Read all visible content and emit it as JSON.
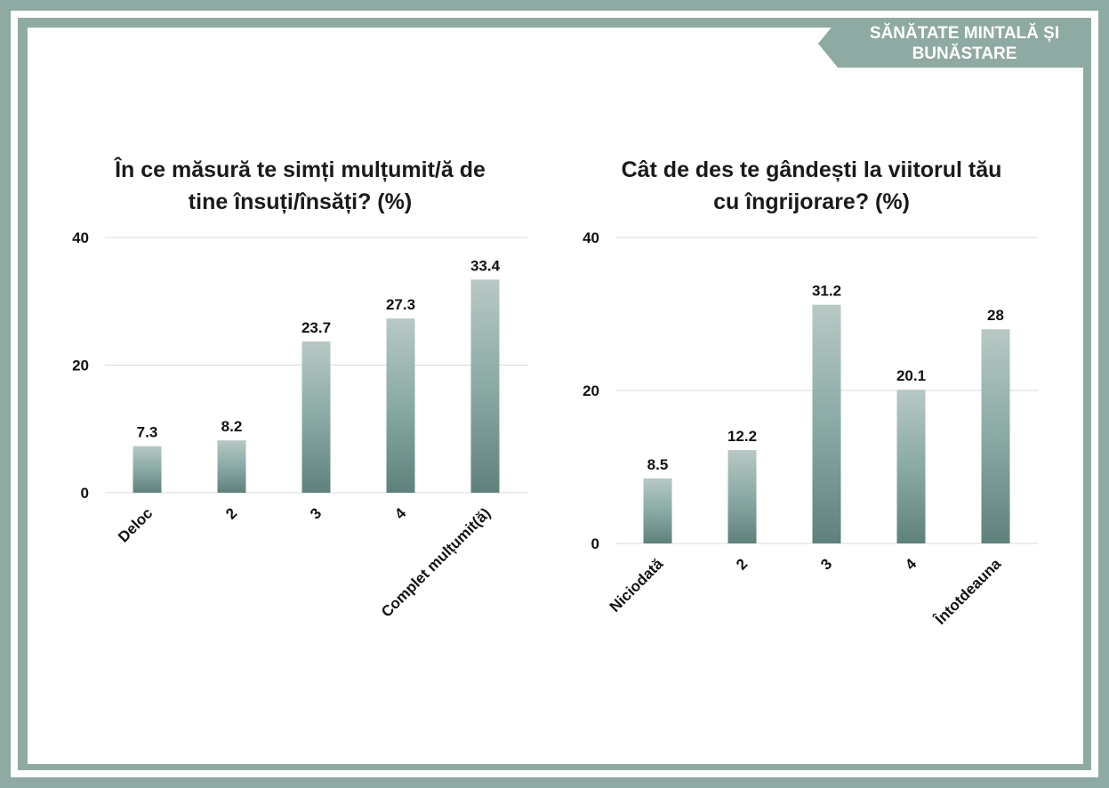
{
  "header": {
    "badge": "SĂNĂTATE MINTALĂ ȘI BUNĂSTARE"
  },
  "colors": {
    "frame": "#8fa9a3",
    "bar_top": "#b8c8c5",
    "bar_mid": "#8aaaa5",
    "bar_bottom": "#5f817c",
    "grid": "#d9d9d9"
  },
  "chart_data": [
    {
      "type": "bar",
      "title": "În ce măsură te simți mulțumit/ă de tine însuți/însăți? (%)",
      "categories": [
        "Deloc",
        "2",
        "3",
        "4",
        "Complet mulțumit(ă)"
      ],
      "values": [
        7.3,
        8.2,
        23.7,
        27.3,
        33.4
      ],
      "value_labels": [
        "7.3",
        "8.2",
        "23.7",
        "27.3",
        "33.4"
      ],
      "ylim": [
        0,
        40
      ],
      "yticks": [
        "0",
        "20",
        "40"
      ],
      "grid": true
    },
    {
      "type": "bar",
      "title": "Cât de des te gândești la viitorul tău cu îngrijorare? (%)",
      "categories": [
        "Niciodată",
        "2",
        "3",
        "4",
        "Întotdeauna"
      ],
      "values": [
        8.5,
        12.2,
        31.2,
        20.1,
        28
      ],
      "value_labels": [
        "8.5",
        "12.2",
        "31.2",
        "20.1",
        "28"
      ],
      "ylim": [
        0,
        40
      ],
      "yticks": [
        "0",
        "20",
        "40"
      ],
      "grid": true
    }
  ]
}
